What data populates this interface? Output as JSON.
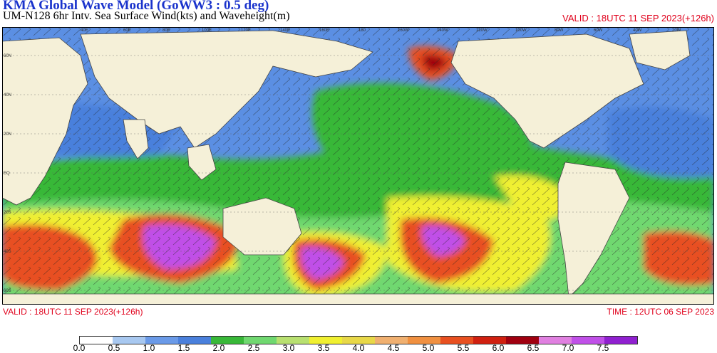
{
  "header": {
    "title": "KMA  Global Wave Model (GoWW3 : 0.5 deg)",
    "subtitle": "UM-N128  6hr Intv. Sea Surface Wind(kts) and Waveheight(m)",
    "valid_top": "VALID : 18UTC 11 SEP 2023(+126h)"
  },
  "footer": {
    "valid": "VALID : 18UTC 11 SEP 2023(+126h)",
    "time": "TIME : 12UTC 06 SEP 2023"
  },
  "map": {
    "land_color": "#f5f0d8",
    "ocean_low_color": "#5b8fe3",
    "lon_labels": [
      "40E",
      "60E",
      "80E",
      "100E",
      "120E",
      "140E",
      "160E",
      "180",
      "160W",
      "140W",
      "120W",
      "100W",
      "80W",
      "60W",
      "40W",
      "20W"
    ],
    "lat_labels": [
      "60N",
      "40N",
      "20N",
      "EQ",
      "20S",
      "40S",
      "60S"
    ]
  },
  "legend": {
    "colors": [
      "#ffffff",
      "#a8c8f0",
      "#6a9ae8",
      "#4a80dc",
      "#38b838",
      "#70d870",
      "#b8e070",
      "#f0f030",
      "#e8d848",
      "#f0b070",
      "#f09040",
      "#e85020",
      "#d02010",
      "#a00010",
      "#e080e0",
      "#c050e8",
      "#9020d0"
    ],
    "labels": [
      "0.0",
      "0.5",
      "1.0",
      "1.5",
      "2.0",
      "2.5",
      "3.0",
      "3.5",
      "4.0",
      "4.5",
      "5.0",
      "5.5",
      "6.0",
      "6.5",
      "7.0",
      "7.5"
    ]
  }
}
